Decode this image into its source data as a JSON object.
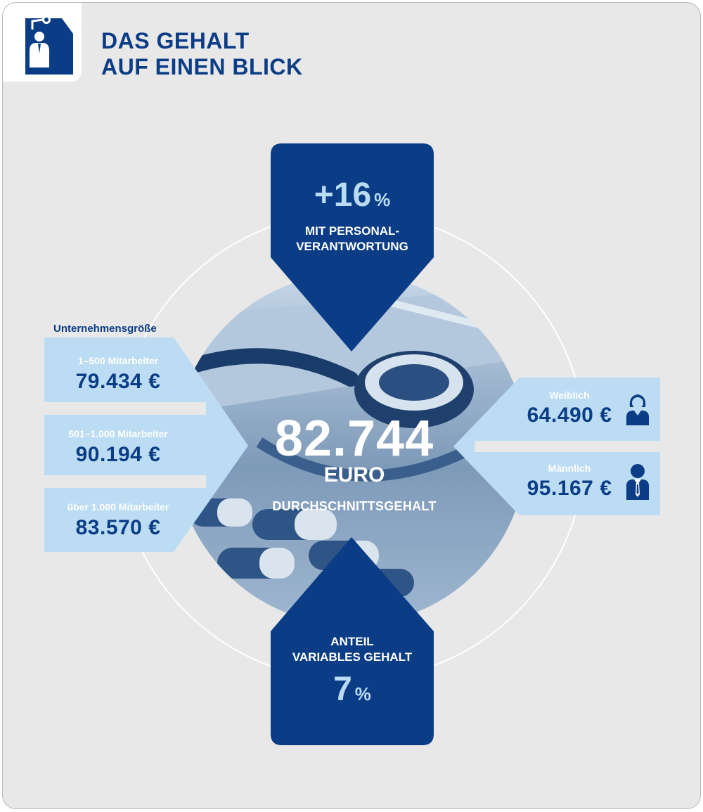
{
  "header": {
    "title_line1": "DAS GEHALT",
    "title_line2": "AUF EINEN BLICK",
    "icon": "stethoscope-doctor-icon"
  },
  "center": {
    "value": "82.744",
    "unit": "EURO",
    "label": "DURCHSCHNITTSGEHALT"
  },
  "top_box": {
    "value": "+16",
    "unit": "%",
    "label_line1": "MIT PERSONAL-",
    "label_line2": "VERANTWORTUNG"
  },
  "bottom_box": {
    "label_line1": "ANTEIL",
    "label_line2": "VARIABLES GEHALT",
    "value": "7",
    "unit": "%"
  },
  "company_size": {
    "heading": "Unternehmensgröße",
    "items": [
      {
        "label": "1–500 Mitarbeiter",
        "value": "79.434 €"
      },
      {
        "label": "501–1.000 Mitarbeiter",
        "value": "90.194 €"
      },
      {
        "label": "über 1.000 Mitarbeiter",
        "value": "83.570 €"
      }
    ]
  },
  "gender": {
    "items": [
      {
        "label": "Weiblich",
        "value": "64.490 €",
        "icon": "woman-icon"
      },
      {
        "label": "Männlich",
        "value": "95.167 €",
        "icon": "man-icon"
      }
    ]
  },
  "colors": {
    "dark_blue": "#0b3d86",
    "light_blue": "#bcdcf3",
    "accent_text": "#b9dcf3",
    "background": "#e8e8e8"
  }
}
